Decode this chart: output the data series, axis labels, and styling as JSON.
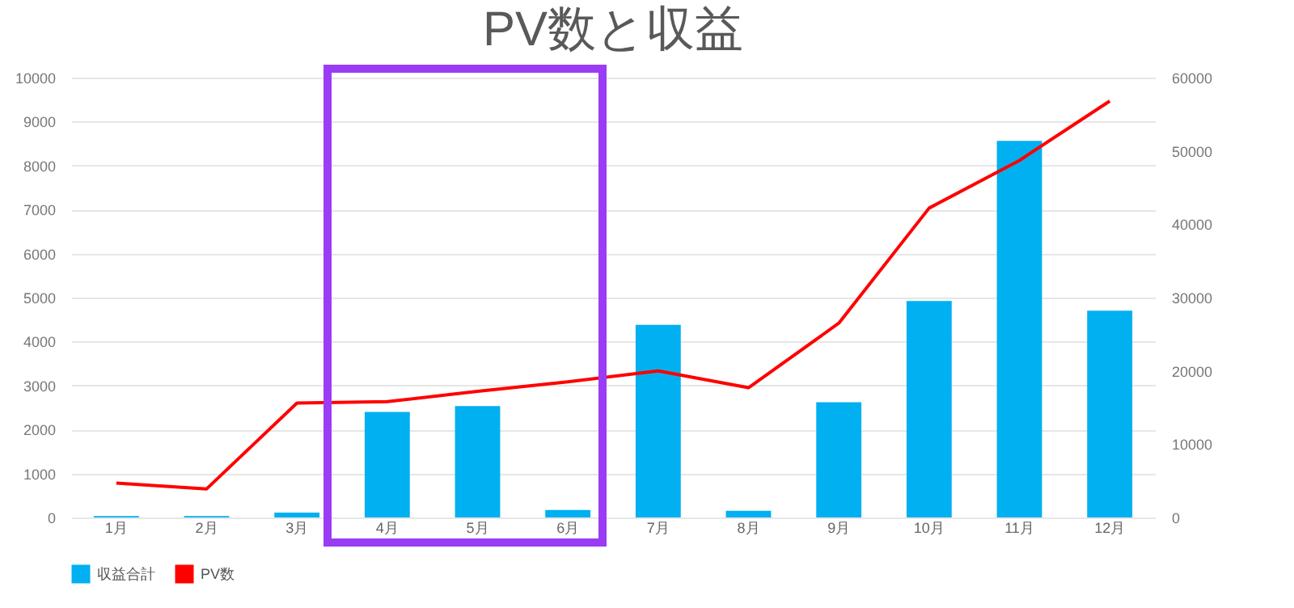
{
  "chart_data": {
    "type": "bar",
    "title": "PV数と収益",
    "categories": [
      "1月",
      "2月",
      "3月",
      "4月",
      "5月",
      "6月",
      "7月",
      "8月",
      "9月",
      "10月",
      "11月",
      "12月"
    ],
    "series": [
      {
        "name": "収益合計",
        "color": "#00b0f0",
        "values": [
          30,
          30,
          110,
          2400,
          2530,
          170,
          4380,
          150,
          2620,
          4920,
          8560,
          4700
        ]
      },
      {
        "name": "PV数",
        "type": "line",
        "axis": "y2",
        "color": "#ff0000",
        "values": [
          4700,
          3900,
          15600,
          15800,
          17200,
          18500,
          20000,
          17700,
          26500,
          42200,
          48700,
          56800
        ]
      }
    ],
    "ylim": [
      0,
      10000
    ],
    "yticks": [
      0,
      1000,
      2000,
      3000,
      4000,
      5000,
      6000,
      7000,
      8000,
      9000,
      10000
    ],
    "y2lim": [
      0,
      60000
    ],
    "y2ticks": [
      0,
      10000,
      20000,
      30000,
      40000,
      50000,
      60000
    ],
    "grid": "y",
    "legend": "bottom",
    "marker": "none",
    "line_style": "solid"
  }
}
